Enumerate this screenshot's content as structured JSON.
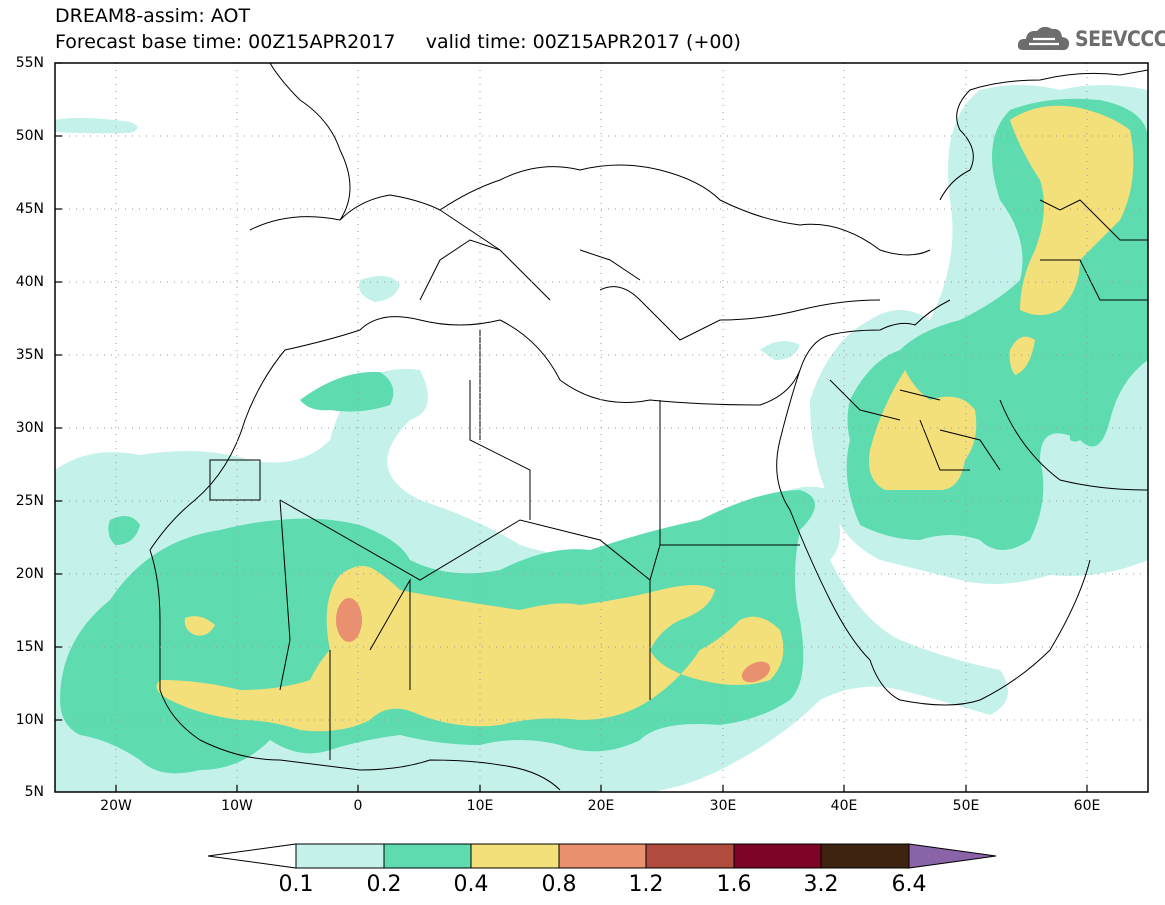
{
  "header": {
    "title_line1": "DREAM8-assim: AOT",
    "title_line2": "Forecast base time: 00Z15APR2017     valid time: 00Z15APR2017 (+00)",
    "logo_text": "SEEVCCC"
  },
  "map": {
    "projection": "lat-lon",
    "lon_range": [
      -25,
      65
    ],
    "lat_range": [
      5,
      55
    ],
    "lat_labels": [
      "55N",
      "50N",
      "45N",
      "40N",
      "35N",
      "30N",
      "25N",
      "20N",
      "15N",
      "10N",
      "5N"
    ],
    "lon_labels": [
      "20W",
      "10W",
      "0",
      "10E",
      "20E",
      "30E",
      "40E",
      "50E",
      "60E"
    ],
    "grid": "dotted"
  },
  "colorbar": {
    "labels": [
      "0.1",
      "0.2",
      "0.4",
      "0.8",
      "1.2",
      "1.6",
      "3.2",
      "6.4"
    ],
    "colors": [
      "#c4f2ea",
      "#5edcb0",
      "#f4e07a",
      "#e99070",
      "#b04c3e",
      "#7d0426",
      "#3e2410",
      "#8a64a8"
    ]
  }
}
